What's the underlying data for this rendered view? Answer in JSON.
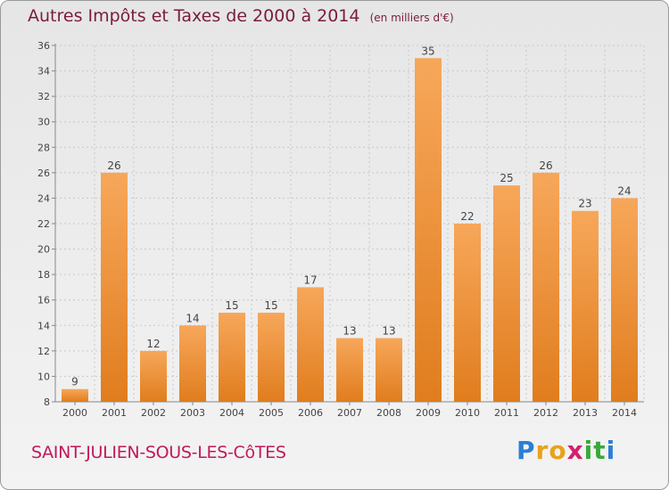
{
  "title": "Autres Impôts et Taxes de 2000 à 2014",
  "unit": "(en milliers d'€)",
  "commune": "SAINT-JULIEN-SOUS-LES-CôTES",
  "logo": {
    "text": "Proxiti",
    "letters": [
      {
        "ch": "P",
        "color": "#2a7fd4"
      },
      {
        "ch": "r",
        "color": "#e8a21c"
      },
      {
        "ch": "o",
        "color": "#e8a21c"
      },
      {
        "ch": "x",
        "color": "#d61f6b"
      },
      {
        "ch": "i",
        "color": "#3aa83a"
      },
      {
        "ch": "t",
        "color": "#3aa83a"
      },
      {
        "ch": "i",
        "color": "#2a7fd4"
      }
    ]
  },
  "colors": {
    "bar_light": "#f7a75a",
    "bar_dark": "#e07d1e",
    "title": "#7a1c3a",
    "commune": "#c2185b"
  },
  "chart_data": {
    "type": "bar",
    "categories": [
      "2000",
      "2001",
      "2002",
      "2003",
      "2004",
      "2005",
      "2006",
      "2007",
      "2008",
      "2009",
      "2010",
      "2011",
      "2012",
      "2013",
      "2014"
    ],
    "values": [
      9,
      26,
      12,
      14,
      15,
      15,
      17,
      13,
      13,
      35,
      22,
      25,
      26,
      23,
      24
    ],
    "ylim": [
      8,
      36
    ],
    "yticks": [
      8,
      10,
      12,
      14,
      16,
      18,
      20,
      22,
      24,
      26,
      28,
      30,
      32,
      34,
      36
    ],
    "grid": true,
    "xlabel": "",
    "ylabel": ""
  }
}
